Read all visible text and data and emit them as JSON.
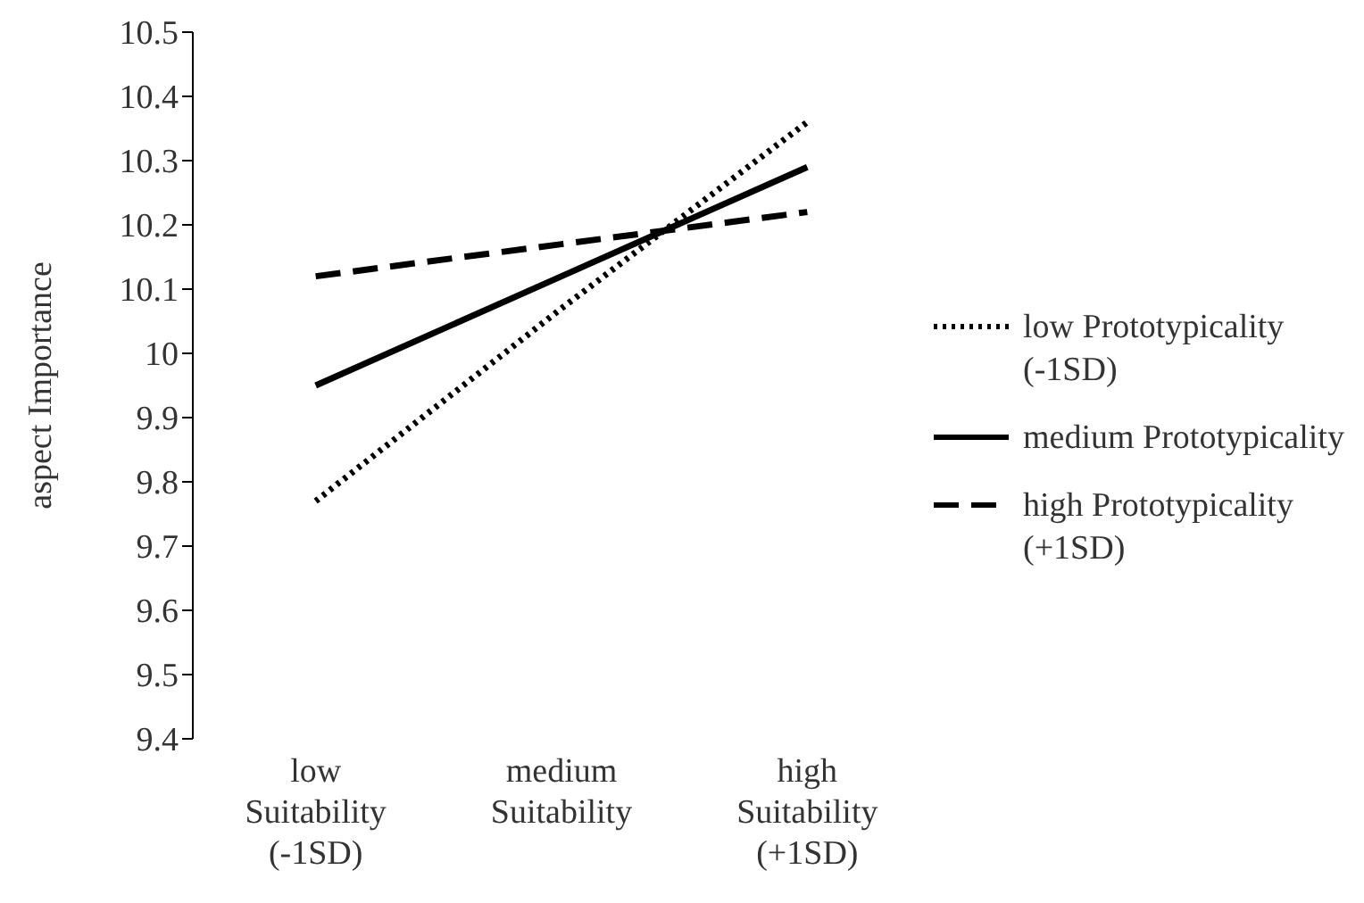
{
  "chart_data": {
    "type": "line",
    "ylabel": "aspect Importance",
    "categories": [
      "low Suitability (-1SD)",
      "medium Suitability",
      "high Suitability (+1SD)"
    ],
    "ylim": [
      9.4,
      10.5
    ],
    "yticks": [
      9.4,
      9.5,
      9.6,
      9.7,
      9.8,
      9.9,
      10,
      10.1,
      10.2,
      10.3,
      10.4,
      10.5
    ],
    "grid": false,
    "legend": "right",
    "marker": "none",
    "series": [
      {
        "name": "low Prototypicality (-1SD)",
        "color": "#000000",
        "line_style": "dotted",
        "values": [
          9.77,
          10.07,
          10.36
        ]
      },
      {
        "name": "medium Prototypicality",
        "color": "#000000",
        "line_style": "solid",
        "values": [
          9.95,
          10.12,
          10.29
        ]
      },
      {
        "name": "high Prototypicality (+1SD)",
        "color": "#000000",
        "line_style": "dashed",
        "values": [
          10.12,
          10.17,
          10.22
        ]
      }
    ]
  }
}
